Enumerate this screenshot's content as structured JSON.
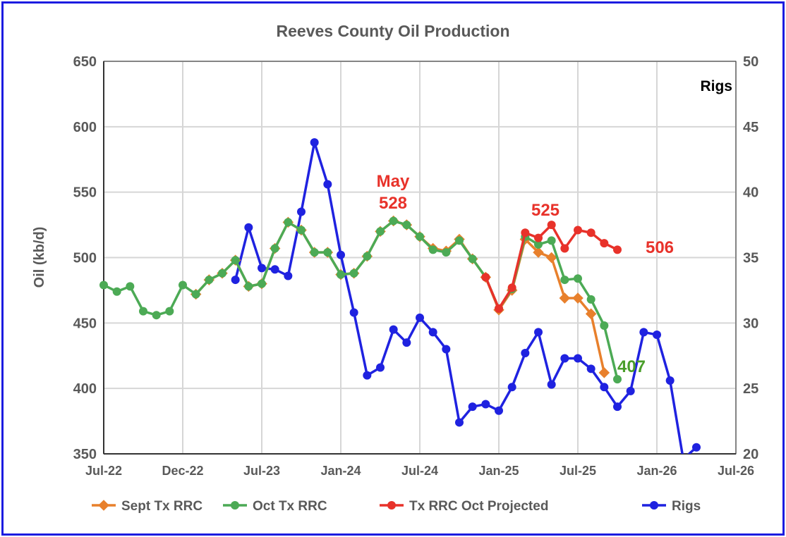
{
  "chart_data": {
    "type": "line",
    "title": "Reeves County Oil Production",
    "ylabel": "Oil (kb/d)",
    "y2label": "Rigs",
    "ylim": [
      350,
      650
    ],
    "y2lim": [
      20,
      50
    ],
    "yticks": [
      350,
      400,
      450,
      500,
      550,
      600,
      650
    ],
    "y2ticks": [
      20,
      25,
      30,
      35,
      40,
      45,
      50
    ],
    "xlim_month_index": [
      0,
      48
    ],
    "xticks": [
      {
        "m": 0,
        "label": "Jul-22"
      },
      {
        "m": 6,
        "label": "Dec-22"
      },
      {
        "m": 12,
        "label": "Jul-23"
      },
      {
        "m": 18,
        "label": "Jan-24"
      },
      {
        "m": 24,
        "label": "Jul-24"
      },
      {
        "m": 30,
        "label": "Jan-25"
      },
      {
        "m": 36,
        "label": "Jul-25"
      },
      {
        "m": 42,
        "label": "Jan-26"
      },
      {
        "m": 48,
        "label": "Jul-26"
      }
    ],
    "grid": true,
    "legend_position": "bottom",
    "series": [
      {
        "name": "Sept Tx RRC",
        "color": "#e8802c",
        "marker": "diamond",
        "axis": "left",
        "start_month": 7,
        "values": [
          472,
          483,
          488,
          498,
          478,
          480,
          507,
          527,
          521,
          504,
          504,
          487,
          488,
          501,
          520,
          528,
          525,
          516,
          507,
          505,
          514,
          499,
          485,
          460,
          475,
          514,
          504,
          500,
          469,
          469,
          457,
          412
        ]
      },
      {
        "name": "Oct Tx RRC",
        "color": "#4caa55",
        "marker": "circle",
        "axis": "left",
        "start_month": 0,
        "values": [
          479,
          474,
          478,
          459,
          456,
          459,
          479,
          472,
          483,
          488,
          498,
          478,
          480,
          507,
          527,
          521,
          504,
          504,
          487,
          488,
          501,
          520,
          528,
          525,
          516,
          506,
          504,
          513,
          499,
          485,
          461,
          476,
          516,
          510,
          513,
          483,
          484,
          468,
          448,
          407
        ]
      },
      {
        "name": "Tx RRC Oct Projected",
        "color": "#e8322a",
        "marker": "circle",
        "axis": "left",
        "start_month": 29,
        "values": [
          485,
          461,
          477,
          519,
          515,
          525,
          507,
          521,
          519,
          511,
          506
        ]
      },
      {
        "name": "Rigs",
        "color": "#1f22e0",
        "marker": "circle",
        "axis": "right",
        "start_month": 10,
        "values": [
          33.3,
          37.3,
          34.2,
          34.1,
          33.6,
          38.5,
          43.8,
          40.6,
          35.2,
          30.8,
          26.0,
          26.6,
          29.5,
          28.5,
          30.4,
          29.3,
          28.0,
          22.4,
          23.6,
          23.8,
          23.3,
          25.1,
          27.7,
          29.3,
          25.3,
          27.3,
          27.3,
          26.5,
          25.1,
          23.6,
          24.8,
          29.3,
          29.1,
          25.6,
          19.6,
          20.5
        ]
      }
    ],
    "annotations": [
      {
        "text": "May",
        "color": "#e8322a"
      },
      {
        "text": "528",
        "color": "#e8322a"
      },
      {
        "text": "525",
        "color": "#e8322a"
      },
      {
        "text": "506",
        "color": "#e8322a"
      },
      {
        "text": "407",
        "color": "#4a9e2a"
      }
    ]
  }
}
